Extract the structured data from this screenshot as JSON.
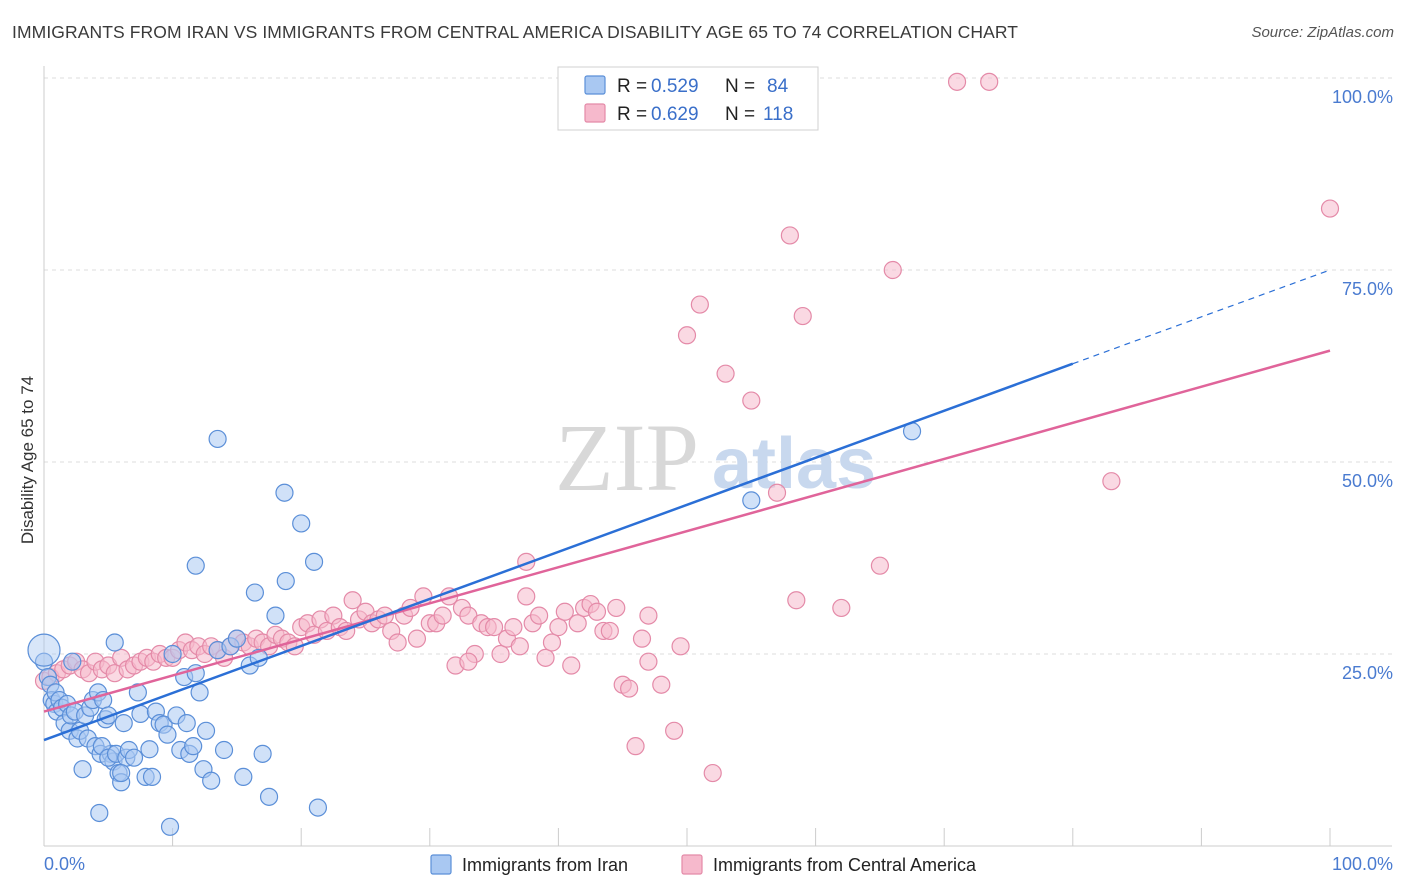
{
  "title": "IMMIGRANTS FROM IRAN VS IMMIGRANTS FROM CENTRAL AMERICA DISABILITY AGE 65 TO 74 CORRELATION CHART",
  "source": "Source: ZipAtlas.com",
  "watermark": {
    "zip": "ZIP",
    "atlas": "atlas"
  },
  "colors": {
    "iran_fill": "#a9c8f2",
    "iran_stroke": "#5b8fd8",
    "iran_line": "#2b6fd6",
    "ca_fill": "#f6b9cc",
    "ca_stroke": "#e48aa8",
    "ca_line": "#e0649a",
    "grid": "#dddddd",
    "tick_text": "#4a7bd0"
  },
  "stats": {
    "r_label": "R =",
    "n_label": "N =",
    "iran": {
      "r": "0.529",
      "n": "84"
    },
    "central_america": {
      "r": "0.629",
      "n": "118"
    }
  },
  "chart_data": {
    "type": "scatter",
    "title": "IMMIGRANTS FROM IRAN VS IMMIGRANTS FROM CENTRAL AMERICA DISABILITY AGE 65 TO 74 CORRELATION CHART",
    "xlabel": "",
    "ylabel": "Disability Age 65 to 74",
    "xlim": [
      0,
      1
    ],
    "ylim": [
      0,
      1
    ],
    "x_tick_labels": [
      "0.0%",
      "100.0%"
    ],
    "y_ticks": [
      0.25,
      0.5,
      0.75,
      1.0
    ],
    "y_tick_labels": [
      "25.0%",
      "50.0%",
      "75.0%",
      "100.0%"
    ],
    "grid": true,
    "legend_position": "bottom",
    "series": [
      {
        "name": "Immigrants from Iran",
        "trend": {
          "x0": 0.0,
          "y0": 0.138,
          "x1": 0.8,
          "y1": 0.628,
          "dash_to_x": 1.0,
          "dash_to_y": 0.75
        },
        "points": [
          [
            0.0,
            0.24
          ],
          [
            0.003,
            0.22
          ],
          [
            0.005,
            0.21
          ],
          [
            0.006,
            0.19
          ],
          [
            0.008,
            0.185
          ],
          [
            0.009,
            0.2
          ],
          [
            0.01,
            0.175
          ],
          [
            0.012,
            0.19
          ],
          [
            0.014,
            0.18
          ],
          [
            0.016,
            0.16
          ],
          [
            0.018,
            0.185
          ],
          [
            0.02,
            0.15
          ],
          [
            0.021,
            0.17
          ],
          [
            0.022,
            0.24
          ],
          [
            0.024,
            0.175
          ],
          [
            0.026,
            0.14
          ],
          [
            0.028,
            0.15
          ],
          [
            0.03,
            0.1
          ],
          [
            0.032,
            0.17
          ],
          [
            0.034,
            0.14
          ],
          [
            0.036,
            0.18
          ],
          [
            0.038,
            0.19
          ],
          [
            0.04,
            0.13
          ],
          [
            0.042,
            0.2
          ],
          [
            0.044,
            0.12
          ],
          [
            0.046,
            0.19
          ],
          [
            0.048,
            0.165
          ],
          [
            0.05,
            0.17
          ],
          [
            0.043,
            0.043
          ],
          [
            0.052,
            0.12
          ],
          [
            0.054,
            0.11
          ],
          [
            0.045,
            0.13
          ],
          [
            0.05,
            0.115
          ],
          [
            0.056,
            0.12
          ],
          [
            0.058,
            0.095
          ],
          [
            0.06,
            0.083
          ],
          [
            0.062,
            0.16
          ],
          [
            0.064,
            0.115
          ],
          [
            0.066,
            0.125
          ],
          [
            0.055,
            0.265
          ],
          [
            0.07,
            0.115
          ],
          [
            0.073,
            0.2
          ],
          [
            0.075,
            0.172
          ],
          [
            0.06,
            0.095
          ],
          [
            0.079,
            0.09
          ],
          [
            0.082,
            0.126
          ],
          [
            0.084,
            0.09
          ],
          [
            0.087,
            0.175
          ],
          [
            0.09,
            0.16
          ],
          [
            0.093,
            0.158
          ],
          [
            0.096,
            0.145
          ],
          [
            0.098,
            0.025
          ],
          [
            0.1,
            0.25
          ],
          [
            0.103,
            0.17
          ],
          [
            0.106,
            0.125
          ],
          [
            0.109,
            0.22
          ],
          [
            0.111,
            0.16
          ],
          [
            0.113,
            0.12
          ],
          [
            0.116,
            0.13
          ],
          [
            0.118,
            0.225
          ],
          [
            0.121,
            0.2
          ],
          [
            0.124,
            0.1
          ],
          [
            0.126,
            0.15
          ],
          [
            0.118,
            0.365
          ],
          [
            0.13,
            0.085
          ],
          [
            0.135,
            0.53
          ],
          [
            0.135,
            0.255
          ],
          [
            0.14,
            0.125
          ],
          [
            0.145,
            0.26
          ],
          [
            0.15,
            0.27
          ],
          [
            0.155,
            0.09
          ],
          [
            0.16,
            0.235
          ],
          [
            0.164,
            0.33
          ],
          [
            0.167,
            0.245
          ],
          [
            0.17,
            0.12
          ],
          [
            0.175,
            0.064
          ],
          [
            0.18,
            0.3
          ],
          [
            0.187,
            0.46
          ],
          [
            0.188,
            0.345
          ],
          [
            0.2,
            0.42
          ],
          [
            0.21,
            0.37
          ],
          [
            0.213,
            0.05
          ],
          [
            0.675,
            0.54
          ],
          [
            0.55,
            0.45
          ]
        ]
      },
      {
        "name": "Immigrants from Central America",
        "trend": {
          "x0": 0.0,
          "y0": 0.175,
          "x1": 1.0,
          "y1": 0.645
        },
        "points": [
          [
            0.0,
            0.215
          ],
          [
            0.005,
            0.22
          ],
          [
            0.01,
            0.225
          ],
          [
            0.015,
            0.23
          ],
          [
            0.02,
            0.235
          ],
          [
            0.025,
            0.24
          ],
          [
            0.03,
            0.23
          ],
          [
            0.035,
            0.225
          ],
          [
            0.04,
            0.24
          ],
          [
            0.045,
            0.23
          ],
          [
            0.05,
            0.235
          ],
          [
            0.055,
            0.225
          ],
          [
            0.06,
            0.245
          ],
          [
            0.065,
            0.23
          ],
          [
            0.07,
            0.235
          ],
          [
            0.075,
            0.24
          ],
          [
            0.08,
            0.245
          ],
          [
            0.085,
            0.24
          ],
          [
            0.09,
            0.25
          ],
          [
            0.095,
            0.245
          ],
          [
            0.1,
            0.245
          ],
          [
            0.105,
            0.255
          ],
          [
            0.11,
            0.265
          ],
          [
            0.115,
            0.255
          ],
          [
            0.12,
            0.26
          ],
          [
            0.125,
            0.25
          ],
          [
            0.13,
            0.26
          ],
          [
            0.135,
            0.255
          ],
          [
            0.14,
            0.245
          ],
          [
            0.145,
            0.26
          ],
          [
            0.15,
            0.27
          ],
          [
            0.155,
            0.265
          ],
          [
            0.16,
            0.26
          ],
          [
            0.165,
            0.27
          ],
          [
            0.17,
            0.265
          ],
          [
            0.175,
            0.26
          ],
          [
            0.18,
            0.275
          ],
          [
            0.185,
            0.27
          ],
          [
            0.19,
            0.265
          ],
          [
            0.195,
            0.26
          ],
          [
            0.2,
            0.285
          ],
          [
            0.205,
            0.29
          ],
          [
            0.21,
            0.275
          ],
          [
            0.215,
            0.295
          ],
          [
            0.22,
            0.28
          ],
          [
            0.225,
            0.3
          ],
          [
            0.23,
            0.285
          ],
          [
            0.235,
            0.28
          ],
          [
            0.24,
            0.32
          ],
          [
            0.245,
            0.295
          ],
          [
            0.25,
            0.305
          ],
          [
            0.255,
            0.29
          ],
          [
            0.26,
            0.295
          ],
          [
            0.265,
            0.3
          ],
          [
            0.27,
            0.28
          ],
          [
            0.275,
            0.265
          ],
          [
            0.28,
            0.3
          ],
          [
            0.285,
            0.31
          ],
          [
            0.29,
            0.27
          ],
          [
            0.295,
            0.325
          ],
          [
            0.3,
            0.29
          ],
          [
            0.305,
            0.29
          ],
          [
            0.31,
            0.3
          ],
          [
            0.315,
            0.325
          ],
          [
            0.32,
            0.235
          ],
          [
            0.325,
            0.31
          ],
          [
            0.33,
            0.3
          ],
          [
            0.335,
            0.25
          ],
          [
            0.34,
            0.29
          ],
          [
            0.345,
            0.285
          ],
          [
            0.35,
            0.285
          ],
          [
            0.355,
            0.25
          ],
          [
            0.36,
            0.27
          ],
          [
            0.365,
            0.285
          ],
          [
            0.37,
            0.26
          ],
          [
            0.375,
            0.325
          ],
          [
            0.38,
            0.29
          ],
          [
            0.385,
            0.3
          ],
          [
            0.39,
            0.245
          ],
          [
            0.395,
            0.265
          ],
          [
            0.4,
            0.285
          ],
          [
            0.405,
            0.305
          ],
          [
            0.41,
            0.235
          ],
          [
            0.415,
            0.29
          ],
          [
            0.42,
            0.31
          ],
          [
            0.425,
            0.315
          ],
          [
            0.43,
            0.305
          ],
          [
            0.435,
            0.28
          ],
          [
            0.44,
            0.28
          ],
          [
            0.445,
            0.31
          ],
          [
            0.45,
            0.21
          ],
          [
            0.455,
            0.205
          ],
          [
            0.46,
            0.13
          ],
          [
            0.465,
            0.27
          ],
          [
            0.47,
            0.24
          ],
          [
            0.48,
            0.21
          ],
          [
            0.49,
            0.15
          ],
          [
            0.495,
            0.26
          ],
          [
            0.5,
            0.665
          ],
          [
            0.51,
            0.705
          ],
          [
            0.52,
            0.095
          ],
          [
            0.53,
            0.615
          ],
          [
            0.55,
            0.58
          ],
          [
            0.57,
            0.46
          ],
          [
            0.58,
            0.795
          ],
          [
            0.585,
            0.32
          ],
          [
            0.59,
            0.69
          ],
          [
            0.62,
            0.31
          ],
          [
            0.65,
            0.365
          ],
          [
            0.66,
            0.75
          ],
          [
            0.71,
            0.995
          ],
          [
            0.735,
            0.995
          ],
          [
            0.83,
            0.475
          ],
          [
            1.0,
            0.83
          ],
          [
            0.33,
            0.24
          ],
          [
            0.375,
            0.37
          ],
          [
            0.47,
            0.3
          ]
        ]
      }
    ]
  },
  "legend": {
    "iran": "Immigrants from Iran",
    "central_america": "Immigrants from Central America"
  }
}
